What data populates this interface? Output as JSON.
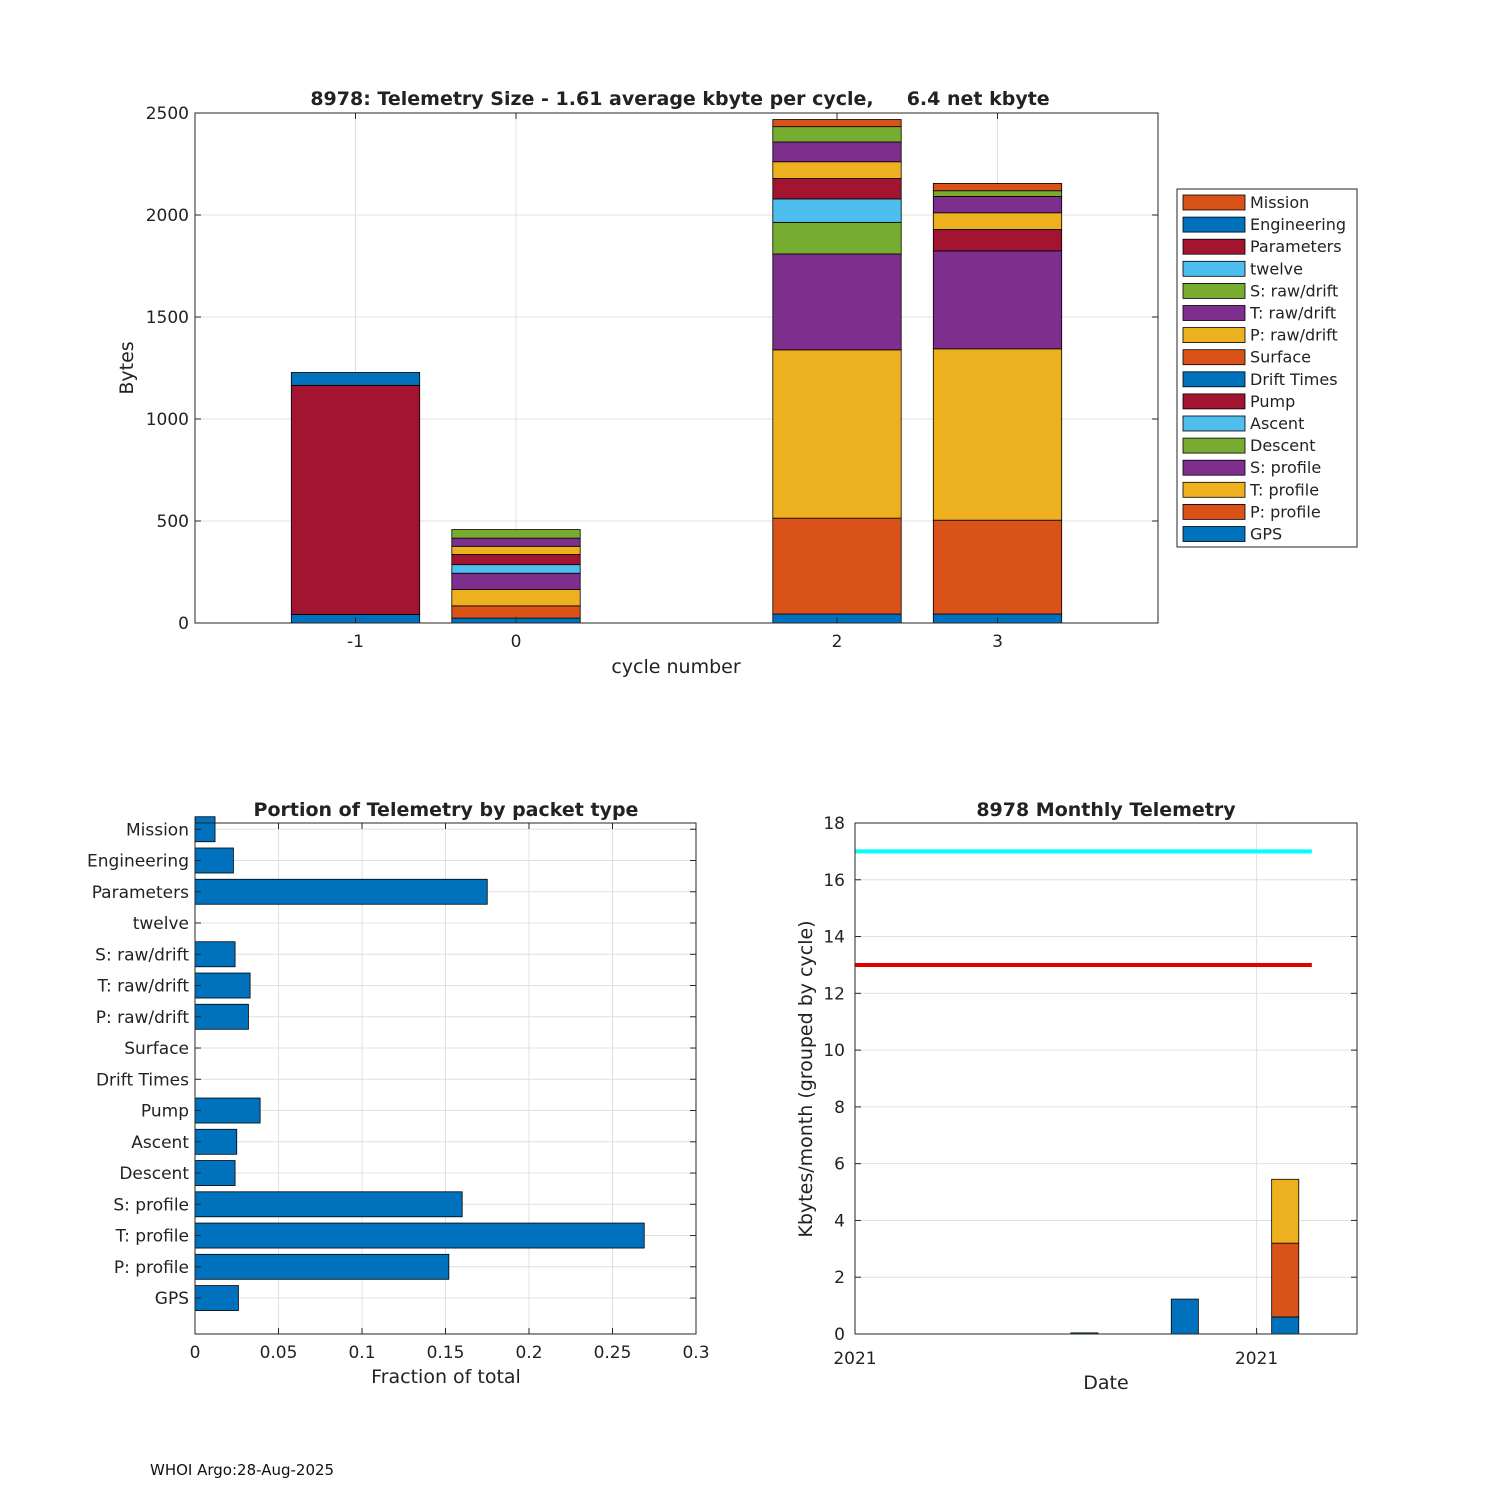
{
  "footer": "WHOI Argo:28-Aug-2025",
  "colors": {
    "GPS": "#0072BD",
    "P: profile": "#D95319",
    "T: profile": "#EDB120",
    "S: profile": "#7E2F8E",
    "Descent": "#77AC30",
    "Ascent": "#4DBEEE",
    "Pump": "#A2142F",
    "Drift Times": "#0072BD",
    "Surface": "#D95319",
    "P: raw/drift": "#EDB120",
    "T: raw/drift": "#7E2F8E",
    "S: raw/drift": "#77AC30",
    "twelve": "#4DBEEE",
    "Parameters": "#A2142F",
    "Engineering": "#0072BD",
    "Mission": "#D95319",
    "cyan_line": "#00FFFF",
    "red_line": "#E00000",
    "grid": "#e0e0e0",
    "axis": "#262626"
  },
  "chart_data": [
    {
      "type": "bar",
      "stacked": true,
      "title": "8978: Telemetry Size - 1.61 average kbyte per cycle,     6.4 net kbyte",
      "xlabel": "cycle number",
      "ylabel": "Bytes",
      "x": [
        -1,
        0,
        2,
        3
      ],
      "x_ticks": [
        -1,
        0,
        2,
        3
      ],
      "xlim": [
        -2,
        4
      ],
      "ylim": [
        0,
        2500
      ],
      "y_ticks": [
        0,
        500,
        1000,
        1500,
        2000,
        2500
      ],
      "grid": true,
      "legend_position": "right",
      "legend": [
        "Mission",
        "Engineering",
        "Parameters",
        "twelve",
        "S: raw/drift",
        "T: raw/drift",
        "P: raw/drift",
        "Surface",
        "Drift Times",
        "Pump",
        "Ascent",
        "Descent",
        "S: profile",
        "T: profile",
        "P: profile",
        "GPS"
      ],
      "series": [
        {
          "name": "GPS",
          "values": [
            42,
            24,
            44,
            44
          ]
        },
        {
          "name": "P: profile",
          "values": [
            0,
            60,
            470,
            460
          ]
        },
        {
          "name": "T: profile",
          "values": [
            0,
            80,
            825,
            840
          ]
        },
        {
          "name": "S: profile",
          "values": [
            0,
            80,
            470,
            480
          ]
        },
        {
          "name": "Descent",
          "values": [
            0,
            0,
            155,
            0
          ]
        },
        {
          "name": "Ascent",
          "values": [
            0,
            42,
            115,
            0
          ]
        },
        {
          "name": "Pump",
          "values": [
            0,
            50,
            100,
            105
          ]
        },
        {
          "name": "Drift Times",
          "values": [
            0,
            0,
            0,
            0
          ]
        },
        {
          "name": "Surface",
          "values": [
            0,
            0,
            0,
            0
          ]
        },
        {
          "name": "P: raw/drift",
          "values": [
            0,
            40,
            82,
            82
          ]
        },
        {
          "name": "T: raw/drift",
          "values": [
            0,
            40,
            97,
            80
          ]
        },
        {
          "name": "S: raw/drift",
          "values": [
            0,
            42,
            75,
            28
          ]
        },
        {
          "name": "twelve",
          "values": [
            0,
            0,
            0,
            0
          ]
        },
        {
          "name": "Parameters",
          "values": [
            1123,
            0,
            0,
            0
          ]
        },
        {
          "name": "Engineering",
          "values": [
            63,
            0,
            0,
            0
          ]
        },
        {
          "name": "Mission",
          "values": [
            0,
            0,
            35,
            36
          ]
        }
      ]
    },
    {
      "type": "bar",
      "orientation": "horizontal",
      "title": "Portion of Telemetry by packet type",
      "xlabel": "Fraction of total",
      "ylabel": "",
      "categories": [
        "GPS",
        "P: profile",
        "T: profile",
        "S: profile",
        "Descent",
        "Ascent",
        "Pump",
        "Drift Times",
        "Surface",
        "P: raw/drift",
        "T: raw/drift",
        "S: raw/drift",
        "twelve",
        "Parameters",
        "Engineering",
        "Mission"
      ],
      "values": [
        0.026,
        0.152,
        0.269,
        0.16,
        0.024,
        0.025,
        0.039,
        0,
        0,
        0.032,
        0.033,
        0.024,
        0,
        0.175,
        0.023,
        0.012
      ],
      "xlim": [
        0,
        0.3
      ],
      "x_ticks": [
        0,
        0.05,
        0.1,
        0.15,
        0.2,
        0.25,
        0.3
      ],
      "x_tick_labels": [
        "0",
        "0.05",
        "0.1",
        "0.15",
        "0.2",
        "0.25",
        "0.3"
      ],
      "grid": true
    },
    {
      "type": "bar",
      "stacked": true,
      "title": "8978 Monthly Telemetry",
      "xlabel": "Date",
      "ylabel": "Kbytes/month (grouped by cycle)",
      "ylim": [
        0,
        18
      ],
      "y_ticks": [
        0,
        2,
        4,
        6,
        8,
        10,
        12,
        14,
        16,
        18
      ],
      "xlim": [
        0,
        1
      ],
      "x_ticks": [
        0,
        0.8
      ],
      "x_tick_labels": [
        "2021",
        "2021"
      ],
      "grid": true,
      "bars": [
        {
          "x": 0.43,
          "width": 0.054,
          "segments": [
            {
              "name": "GPS",
              "value": 0.04
            }
          ]
        },
        {
          "x": 0.63,
          "width": 0.054,
          "segments": [
            {
              "name": "GPS",
              "value": 1.23
            }
          ]
        },
        {
          "x": 0.83,
          "width": 0.054,
          "segments": [
            {
              "name": "GPS",
              "value": 0.6
            },
            {
              "name": "P: profile",
              "value": 2.6
            },
            {
              "name": "T: profile",
              "value": 2.25
            }
          ]
        }
      ],
      "lines": [
        {
          "name": "cyan-limit",
          "y": 17,
          "x": [
            0,
            0.91
          ],
          "color": "#00FFFF"
        },
        {
          "name": "red-limit",
          "y": 13,
          "x": [
            0,
            0.91
          ],
          "color": "#E00000"
        }
      ]
    }
  ]
}
